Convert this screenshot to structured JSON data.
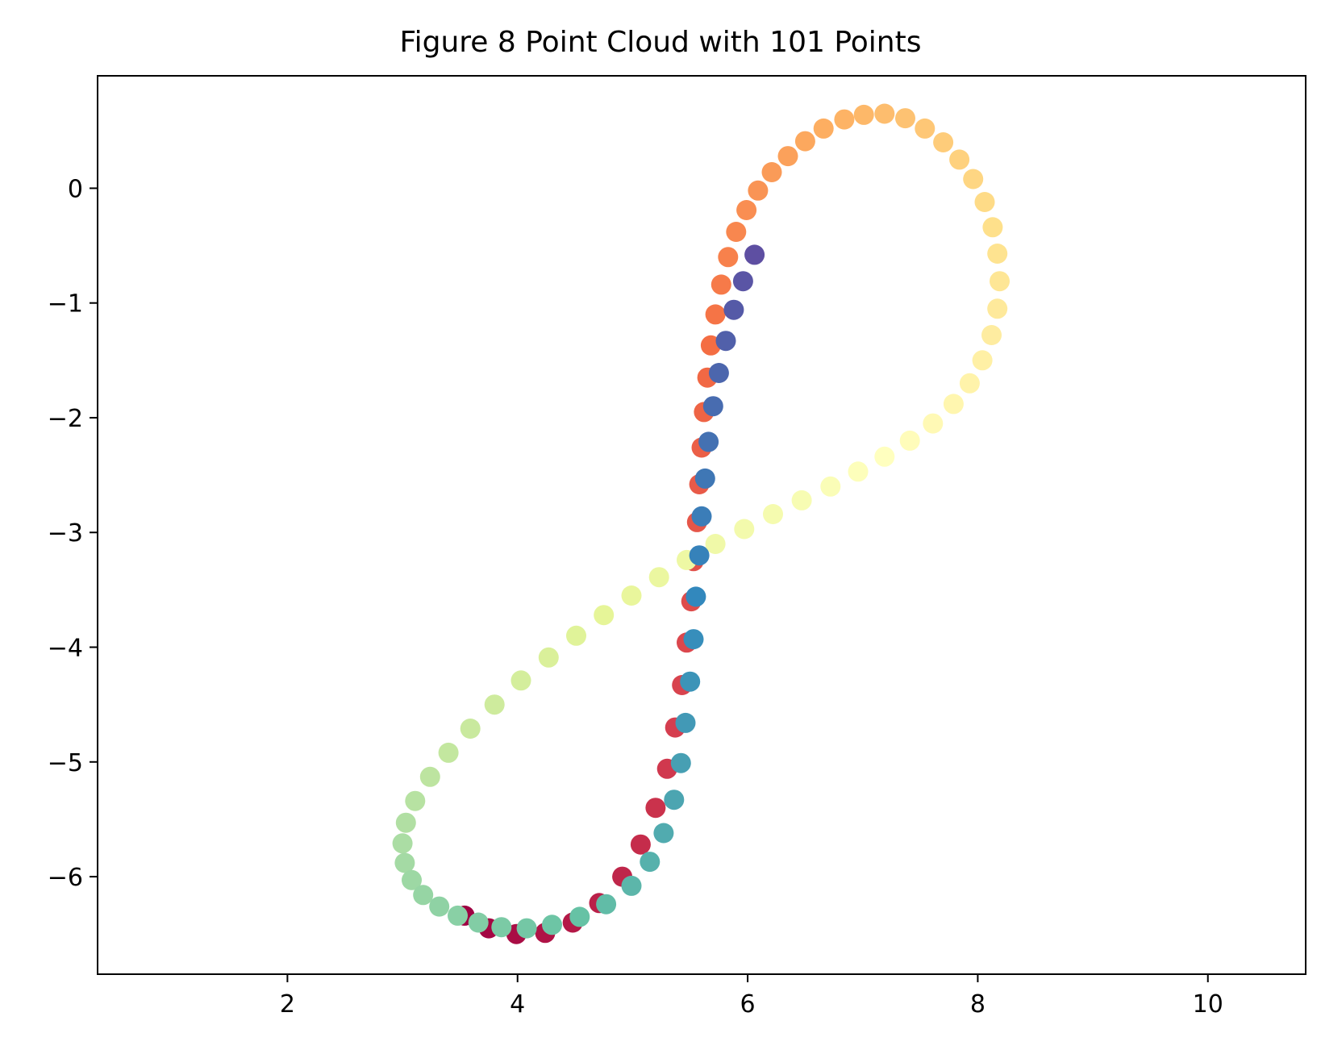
{
  "chart_data": {
    "type": "scatter",
    "title": "Figure 8 Point Cloud with 101 Points",
    "xlabel": "",
    "ylabel": "",
    "xlim": [
      0.35,
      10.85
    ],
    "ylim": [
      -6.85,
      0.98
    ],
    "xticks": [
      2,
      4,
      6,
      8,
      10
    ],
    "yticks": [
      0,
      -1,
      -2,
      -3,
      -4,
      -5,
      -6
    ],
    "ytick_labels": [
      "0",
      "−1",
      "−2",
      "−3",
      "−4",
      "−5",
      "−6"
    ],
    "grid": false,
    "colormap": "Spectral",
    "colormap_stops": [
      "#9e0142",
      "#d53e4f",
      "#f46d43",
      "#fdae61",
      "#fee08b",
      "#ffffbf",
      "#e6f598",
      "#abdda4",
      "#66c2a5",
      "#3288bd",
      "#5e4fa2"
    ],
    "point_count": 101,
    "curve": {
      "form": "x = 5.6 + 2.6*sin(t+2.16), y = -2.95 + 3.55*sin(2t+2.16), t = 2*pi*i/100, i = 0..100",
      "cx": 5.6,
      "ax": 2.6,
      "cy": -2.95,
      "ay": 3.55,
      "phase": 2.16
    },
    "series": [
      {
        "x": [
          3.54,
          3.75,
          3.99,
          4.24,
          4.48,
          4.71,
          4.91,
          5.07,
          5.2,
          5.3,
          5.37,
          5.43,
          5.47,
          5.51,
          5.53,
          5.56,
          5.58,
          5.6,
          5.62,
          5.65,
          5.68,
          5.72,
          5.77,
          5.83,
          5.9,
          5.99,
          6.09,
          6.21,
          6.35,
          6.5,
          6.66,
          6.84,
          7.01,
          7.19,
          7.37,
          7.54,
          7.7,
          7.84,
          7.96,
          8.06,
          8.13,
          8.17,
          8.19,
          8.17,
          8.12,
          8.04,
          7.93,
          7.79,
          7.61,
          7.41,
          7.19,
          6.96,
          6.72,
          6.47,
          6.22,
          5.97,
          5.72,
          5.47,
          5.23,
          4.99,
          4.75,
          4.51,
          4.27,
          4.03,
          3.8,
          3.59,
          3.4,
          3.24,
          3.11,
          3.03,
          3.0,
          3.02,
          3.08,
          3.18,
          3.32,
          3.48,
          3.66,
          3.86,
          4.08,
          4.3,
          4.54,
          4.77,
          4.99,
          5.15,
          5.27,
          5.36,
          5.42,
          5.46,
          5.5,
          5.53,
          5.55,
          5.58,
          5.6,
          5.63,
          5.66,
          5.7,
          5.75,
          5.81,
          5.88,
          5.96,
          6.06
        ],
        "y": [
          -6.34,
          -6.45,
          -6.5,
          -6.49,
          -6.4,
          -6.23,
          -6.0,
          -5.72,
          -5.4,
          -5.06,
          -4.7,
          -4.33,
          -3.96,
          -3.6,
          -3.25,
          -2.91,
          -2.58,
          -2.26,
          -1.95,
          -1.65,
          -1.37,
          -1.1,
          -0.84,
          -0.6,
          -0.38,
          -0.19,
          -0.02,
          0.14,
          0.28,
          0.41,
          0.52,
          0.6,
          0.64,
          0.65,
          0.61,
          0.52,
          0.4,
          0.25,
          0.08,
          -0.12,
          -0.34,
          -0.57,
          -0.81,
          -1.05,
          -1.28,
          -1.5,
          -1.7,
          -1.88,
          -2.05,
          -2.2,
          -2.34,
          -2.47,
          -2.6,
          -2.72,
          -2.84,
          -2.97,
          -3.1,
          -3.24,
          -3.39,
          -3.55,
          -3.72,
          -3.9,
          -4.09,
          -4.29,
          -4.5,
          -4.71,
          -4.92,
          -5.13,
          -5.34,
          -5.53,
          -5.71,
          -5.88,
          -6.03,
          -6.16,
          -6.26,
          -6.34,
          -6.4,
          -6.44,
          -6.45,
          -6.42,
          -6.35,
          -6.24,
          -6.08,
          -5.87,
          -5.62,
          -5.33,
          -5.01,
          -4.66,
          -4.3,
          -3.93,
          -3.56,
          -3.2,
          -2.86,
          -2.53,
          -2.21,
          -1.9,
          -1.61,
          -1.33,
          -1.06,
          -0.81,
          -0.58
        ]
      }
    ]
  }
}
